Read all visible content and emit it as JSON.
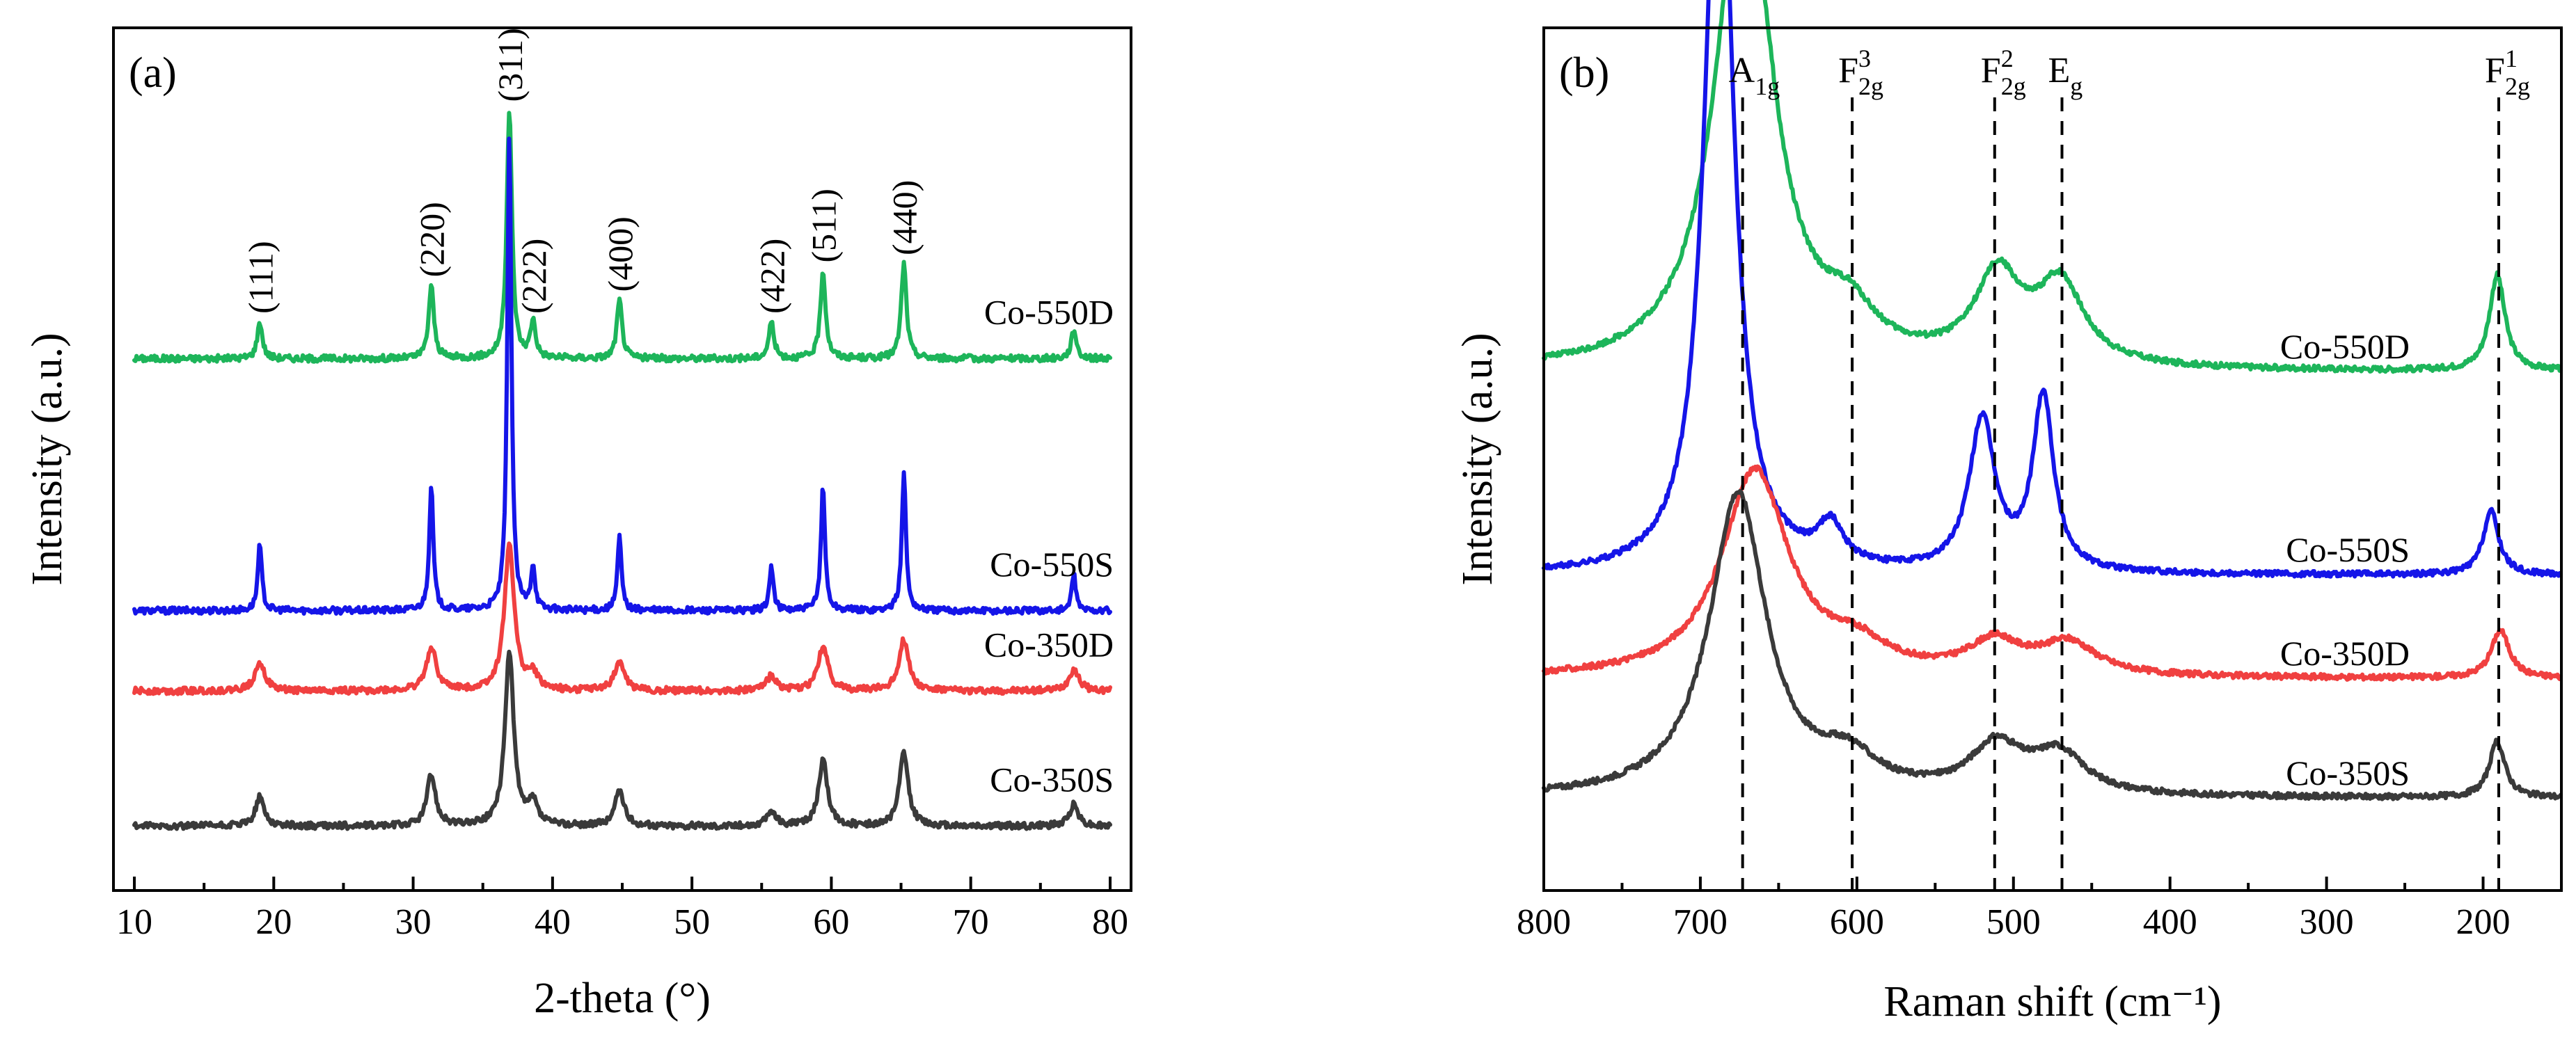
{
  "chart_data": [
    {
      "type": "line",
      "panel_label": "(a)",
      "title": "",
      "xlabel": "2-theta (°)",
      "ylabel": "Intensity (a.u.)",
      "xlim": [
        8.5,
        81.5
      ],
      "x_ticks": [
        10,
        20,
        30,
        40,
        50,
        60,
        70,
        80
      ],
      "y_ticks_visible": false,
      "grid": false,
      "peak_positions_2theta": [
        19.0,
        31.3,
        36.9,
        38.6,
        44.8,
        55.7,
        59.4,
        65.2,
        77.4
      ],
      "hkl_labels": [
        {
          "text": "(111)",
          "x": 19.0
        },
        {
          "text": "(220)",
          "x": 31.3
        },
        {
          "text": "(311)",
          "x": 36.9
        },
        {
          "text": "(222)",
          "x": 38.6
        },
        {
          "text": "(400)",
          "x": 44.8
        },
        {
          "text": "(422)",
          "x": 55.7
        },
        {
          "text": "(511)",
          "x": 59.4
        },
        {
          "text": "(440)",
          "x": 65.2
        }
      ],
      "series": [
        {
          "name": "Co-550D",
          "color": "#1db55a",
          "baseline": 0.69,
          "peak_heights": [
            0.05,
            0.1,
            0.34,
            0.05,
            0.08,
            0.05,
            0.12,
            0.13,
            0.04
          ],
          "fwhm": 0.45
        },
        {
          "name": "Co-550S",
          "color": "#1515e8",
          "baseline": 0.345,
          "peak_heights": [
            0.09,
            0.17,
            0.65,
            0.06,
            0.1,
            0.06,
            0.17,
            0.19,
            0.05
          ],
          "fwhm": 0.35
        },
        {
          "name": "Co-350D",
          "color": "#f04040",
          "baseline": 0.235,
          "peak_heights": [
            0.04,
            0.06,
            0.2,
            0.02,
            0.04,
            0.02,
            0.06,
            0.07,
            0.03
          ],
          "fwhm": 0.85
        },
        {
          "name": "Co-350S",
          "color": "#3a3a3a",
          "baseline": 0.05,
          "peak_heights": [
            0.04,
            0.07,
            0.24,
            0.03,
            0.05,
            0.02,
            0.09,
            0.1,
            0.03
          ],
          "fwhm": 0.75
        }
      ]
    },
    {
      "type": "line",
      "panel_label": "(b)",
      "title": "",
      "xlabel": "Raman shift (cm⁻¹)",
      "ylabel": "Intensity (a.u.)",
      "xlim": [
        800,
        150
      ],
      "x_ticks": [
        800,
        700,
        600,
        500,
        400,
        300,
        200
      ],
      "y_ticks_visible": false,
      "grid": false,
      "raman_modes": [
        {
          "main": "A",
          "sup": "",
          "sub": "1g",
          "x": 673
        },
        {
          "main": "F",
          "sup": "3",
          "sub": "2g",
          "x": 603
        },
        {
          "main": "F",
          "sup": "2",
          "sub": "2g",
          "x": 512
        },
        {
          "main": "E",
          "sup": "",
          "sub": "g",
          "x": 469
        },
        {
          "main": "F",
          "sup": "1",
          "sub": "2g",
          "x": 190
        }
      ],
      "series": [
        {
          "name": "Co-550D",
          "color": "#1db55a",
          "baseline": 0.585,
          "peaks": [
            {
              "x": 672,
              "h": 0.63,
              "w": 22
            },
            {
              "x": 605,
              "h": 0.05,
              "w": 20
            },
            {
              "x": 510,
              "h": 0.11,
              "w": 18
            },
            {
              "x": 470,
              "h": 0.1,
              "w": 18
            },
            {
              "x": 191,
              "h": 0.12,
              "w": 6
            }
          ]
        },
        {
          "name": "Co-550S",
          "color": "#1515e8",
          "baseline": 0.33,
          "peaks": [
            {
              "x": 688,
              "h": 1.0,
              "w": 11
            },
            {
              "x": 617,
              "h": 0.05,
              "w": 10
            },
            {
              "x": 520,
              "h": 0.19,
              "w": 10
            },
            {
              "x": 481,
              "h": 0.22,
              "w": 8
            },
            {
              "x": 195,
              "h": 0.08,
              "w": 6
            }
          ]
        },
        {
          "name": "Co-350D",
          "color": "#f04040",
          "baseline": 0.2,
          "peaks": [
            {
              "x": 665,
              "h": 0.26,
              "w": 26
            },
            {
              "x": 600,
              "h": 0.03,
              "w": 24
            },
            {
              "x": 512,
              "h": 0.04,
              "w": 20
            },
            {
              "x": 465,
              "h": 0.04,
              "w": 22
            },
            {
              "x": 189,
              "h": 0.06,
              "w": 7
            }
          ]
        },
        {
          "name": "Co-350S",
          "color": "#3a3a3a",
          "baseline": 0.05,
          "peaks": [
            {
              "x": 676,
              "h": 0.38,
              "w": 22
            },
            {
              "x": 606,
              "h": 0.04,
              "w": 22
            },
            {
              "x": 511,
              "h": 0.06,
              "w": 20
            },
            {
              "x": 471,
              "h": 0.05,
              "w": 20
            },
            {
              "x": 191,
              "h": 0.07,
              "w": 6
            }
          ]
        }
      ]
    }
  ]
}
